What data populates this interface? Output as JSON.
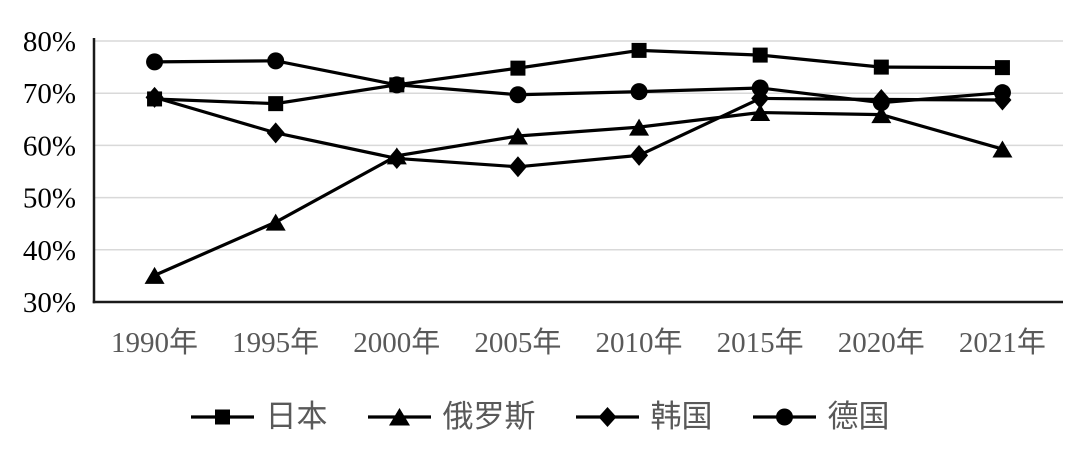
{
  "chart_data": {
    "type": "line",
    "title": "",
    "xlabel": "",
    "ylabel": "",
    "categories": [
      "1990年",
      "1995年",
      "2000年",
      "2005年",
      "2010年",
      "2015年",
      "2020年",
      "2021年"
    ],
    "ylim": [
      30,
      80
    ],
    "y_ticks": [
      {
        "value": 80,
        "label": "80%"
      },
      {
        "value": 70,
        "label": "70%"
      },
      {
        "value": 60,
        "label": "60%"
      },
      {
        "value": 50,
        "label": "50%"
      },
      {
        "value": 40,
        "label": "40%"
      },
      {
        "value": 30,
        "label": "30%"
      }
    ],
    "grid": "horizontal",
    "legend_position": "bottom",
    "series": [
      {
        "id": "japan",
        "name": "日本",
        "marker": "square",
        "values": [
          68.9,
          68.0,
          71.6,
          74.8,
          78.2,
          77.3,
          75.0,
          74.9
        ]
      },
      {
        "id": "russia",
        "name": "俄罗斯",
        "marker": "triangle",
        "values": [
          35.1,
          45.3,
          58.0,
          61.8,
          63.5,
          66.3,
          65.9,
          59.3
        ]
      },
      {
        "id": "korea",
        "name": "韩国",
        "marker": "diamond",
        "values": [
          69.2,
          62.4,
          57.5,
          55.9,
          58.1,
          69.0,
          68.8,
          68.7
        ]
      },
      {
        "id": "germany",
        "name": "德国",
        "marker": "circle",
        "values": [
          76.0,
          76.2,
          71.6,
          69.7,
          70.3,
          71.0,
          68.2,
          70.1
        ]
      }
    ],
    "colors": {
      "line": "#000000",
      "marker": "#000000",
      "grid": "#d9d9d9",
      "axis": "#1a1a1a",
      "y_tick_label": "#000000",
      "category_label": "#595959",
      "legend_label": "#595959",
      "background": "#ffffff"
    }
  }
}
